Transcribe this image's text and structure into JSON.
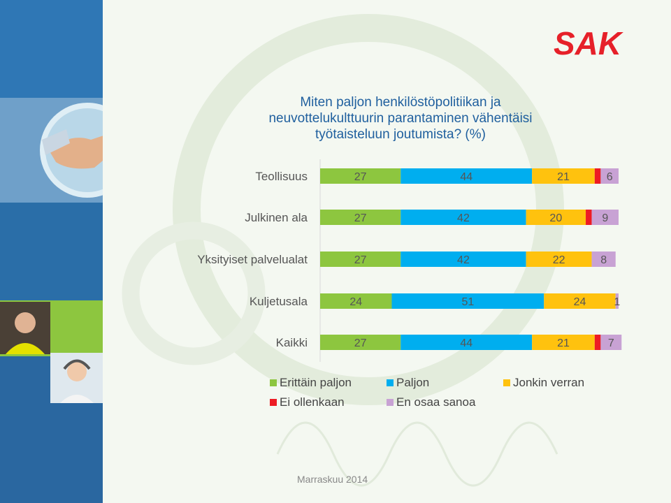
{
  "brand": {
    "logo_text": "SAK",
    "logo_color": "#e62029"
  },
  "footer": {
    "date": "Marraskuu 2014"
  },
  "chart_data": {
    "type": "bar",
    "orientation": "horizontal",
    "stacked": true,
    "title": [
      "Miten paljon henkilöstöpolitiikan ja",
      "neuvottelukulttuurin parantaminen vähentäisi",
      "työtaisteluun joutumista? (%)"
    ],
    "categories": [
      "Teollisuus",
      "Julkinen ala",
      "Yksityiset palvelualat",
      "Kuljetusala",
      "Kaikki"
    ],
    "series": [
      {
        "name": "Erittäin paljon",
        "color": "#8dc63f",
        "values": [
          27,
          27,
          27,
          24,
          27
        ]
      },
      {
        "name": "Paljon",
        "color": "#00aeef",
        "values": [
          44,
          42,
          42,
          51,
          44
        ]
      },
      {
        "name": "Jonkin verran",
        "color": "#ffc20e",
        "values": [
          21,
          20,
          22,
          24,
          21
        ]
      },
      {
        "name": "Ei ollenkaan",
        "color": "#ed1c24",
        "values": [
          2,
          2,
          0,
          0,
          2
        ]
      },
      {
        "name": "En osaa sanoa",
        "color": "#c8a2d4",
        "values": [
          6,
          9,
          8,
          1,
          7
        ]
      }
    ],
    "data_labels": [
      [
        "27",
        "44",
        "21",
        "",
        "6"
      ],
      [
        "27",
        "42",
        "20",
        "",
        "9"
      ],
      [
        "27",
        "42",
        "22",
        "",
        "8"
      ],
      [
        "24",
        "51",
        "24",
        "",
        "1"
      ],
      [
        "27",
        "44",
        "21",
        "",
        "7"
      ]
    ],
    "xlim": [
      0,
      100
    ],
    "legend_position": "bottom",
    "grid": false
  }
}
